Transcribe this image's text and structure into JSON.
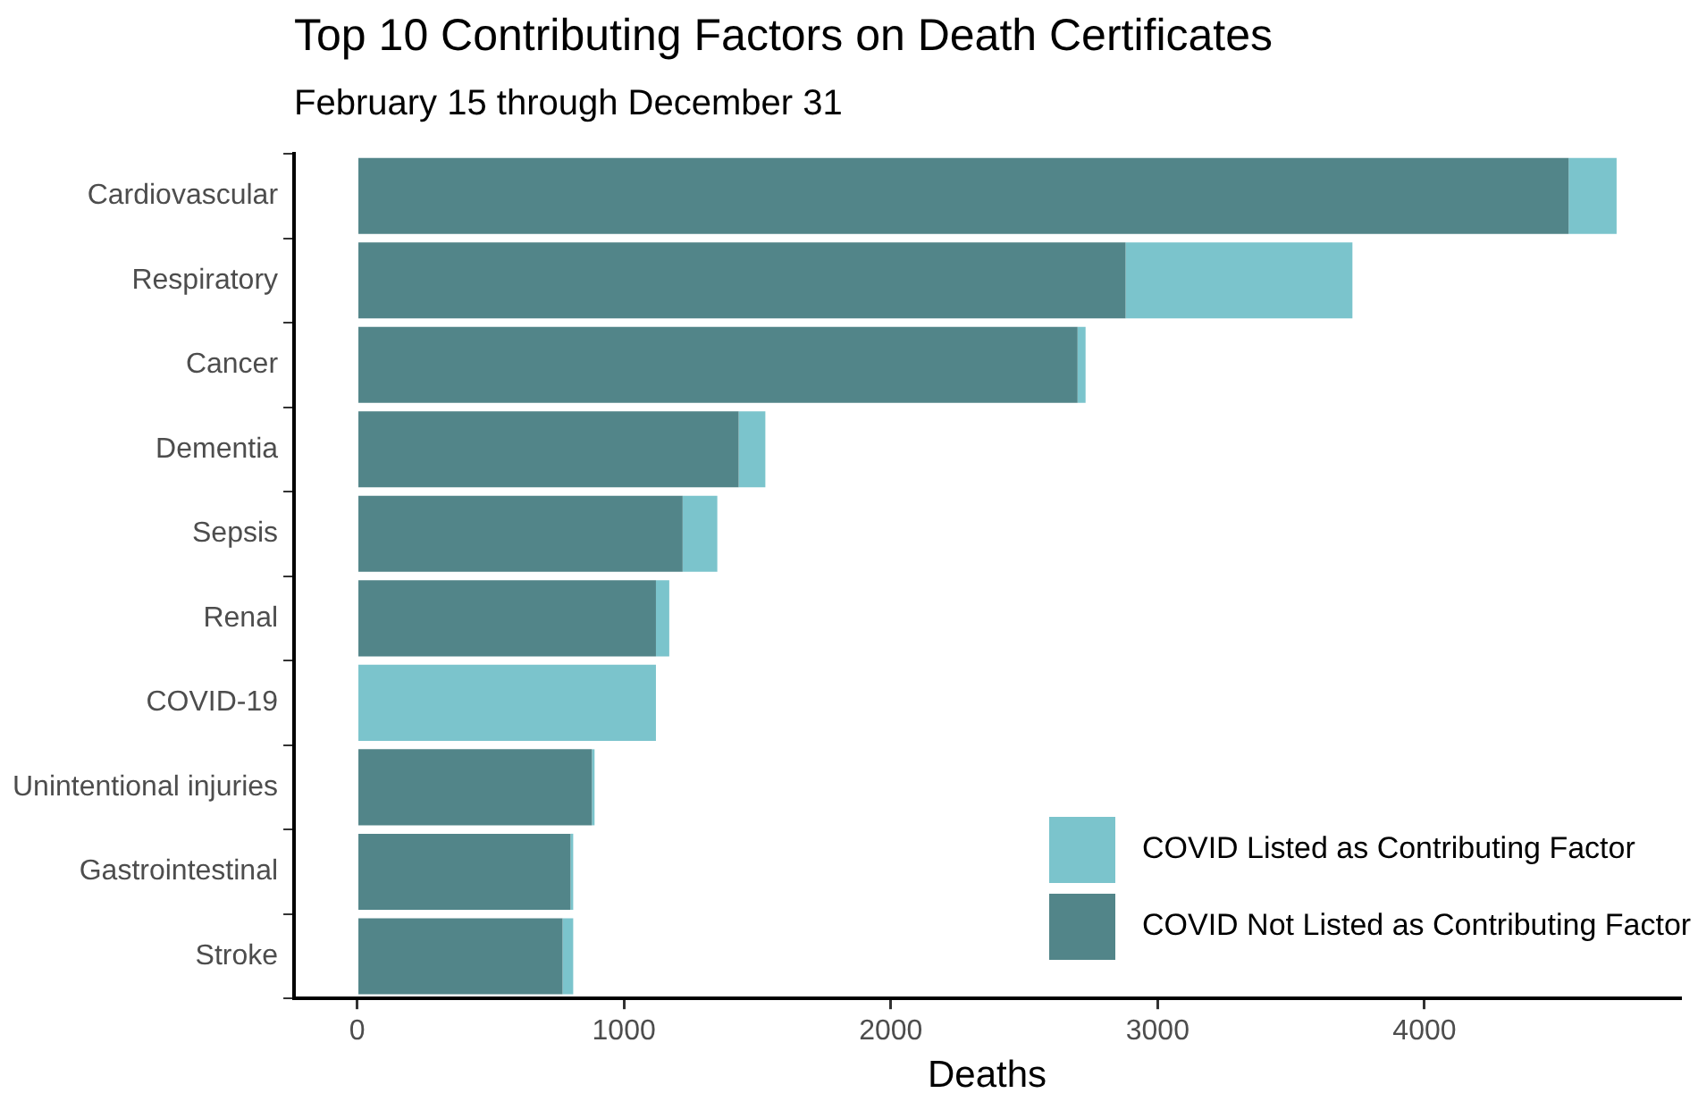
{
  "chart_data": {
    "type": "bar",
    "orientation": "horizontal",
    "stacked": true,
    "title": "Top 10 Contributing Factors on Death Certificates",
    "subtitle": "February 15 through December 31",
    "xlabel": "Deaths",
    "categories": [
      "Cardiovascular",
      "Respiratory",
      "Cancer",
      "Dementia",
      "Sepsis",
      "Renal",
      "COVID-19",
      "Unintentional injuries",
      "Gastrointestinal",
      "Stroke"
    ],
    "series": [
      {
        "name": "COVID Not Listed as Contributing Factor",
        "color": "#528589",
        "values": [
          4540,
          2880,
          2700,
          1430,
          1220,
          1120,
          0,
          880,
          800,
          770
        ]
      },
      {
        "name": "COVID Listed as Contributing Factor",
        "color": "#7bc4cc",
        "values": [
          180,
          850,
          30,
          100,
          130,
          50,
          1120,
          10,
          10,
          40
        ]
      }
    ],
    "xlim": [
      -236,
      4958
    ],
    "xticks": [
      0,
      1000,
      2000,
      3000,
      4000
    ],
    "grid": false,
    "legend": "bottom right"
  }
}
